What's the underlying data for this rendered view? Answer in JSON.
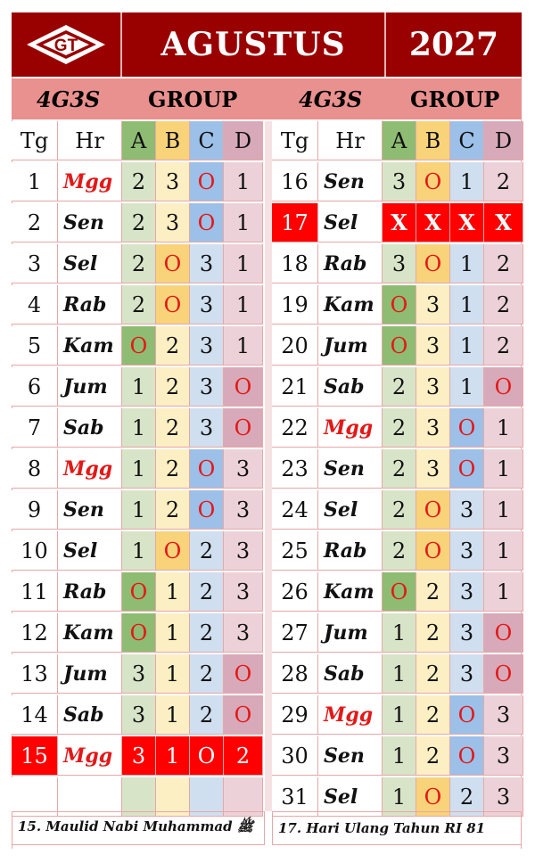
{
  "header": {
    "logo_text": "GT",
    "month": "AGUSTUS",
    "year": "2027"
  },
  "subheader": {
    "left": {
      "code": "4G3S",
      "group": "GROUP"
    },
    "right": {
      "code": "4G3S",
      "group": "GROUP"
    }
  },
  "columns": {
    "tg": "Tg",
    "hr": "Hr",
    "a": "A",
    "b": "B",
    "c": "C",
    "d": "D"
  },
  "left_rows": [
    {
      "tg": "1",
      "hr": "Mgg",
      "a": "2",
      "b": "3",
      "c": "O",
      "d": "1"
    },
    {
      "tg": "2",
      "hr": "Sen",
      "a": "2",
      "b": "3",
      "c": "O",
      "d": "1"
    },
    {
      "tg": "3",
      "hr": "Sel",
      "a": "2",
      "b": "O",
      "c": "3",
      "d": "1"
    },
    {
      "tg": "4",
      "hr": "Rab",
      "a": "2",
      "b": "O",
      "c": "3",
      "d": "1"
    },
    {
      "tg": "5",
      "hr": "Kam",
      "a": "O",
      "b": "2",
      "c": "3",
      "d": "1"
    },
    {
      "tg": "6",
      "hr": "Jum",
      "a": "1",
      "b": "2",
      "c": "3",
      "d": "O"
    },
    {
      "tg": "7",
      "hr": "Sab",
      "a": "1",
      "b": "2",
      "c": "3",
      "d": "O"
    },
    {
      "tg": "8",
      "hr": "Mgg",
      "a": "1",
      "b": "2",
      "c": "O",
      "d": "3"
    },
    {
      "tg": "9",
      "hr": "Sen",
      "a": "1",
      "b": "2",
      "c": "O",
      "d": "3"
    },
    {
      "tg": "10",
      "hr": "Sel",
      "a": "1",
      "b": "O",
      "c": "2",
      "d": "3"
    },
    {
      "tg": "11",
      "hr": "Rab",
      "a": "O",
      "b": "1",
      "c": "2",
      "d": "3"
    },
    {
      "tg": "12",
      "hr": "Kam",
      "a": "O",
      "b": "1",
      "c": "2",
      "d": "3"
    },
    {
      "tg": "13",
      "hr": "Jum",
      "a": "3",
      "b": "1",
      "c": "2",
      "d": "O"
    },
    {
      "tg": "14",
      "hr": "Sab",
      "a": "3",
      "b": "1",
      "c": "2",
      "d": "O"
    },
    {
      "tg": "15",
      "hr": "Mgg",
      "a": "3",
      "b": "1",
      "c": "O",
      "d": "2"
    },
    {
      "tg": "",
      "hr": "",
      "a": "",
      "b": "",
      "c": "",
      "d": ""
    }
  ],
  "right_rows": [
    {
      "tg": "16",
      "hr": "Sen",
      "a": "3",
      "b": "O",
      "c": "1",
      "d": "2"
    },
    {
      "tg": "17",
      "hr": "Sel",
      "a": "X",
      "b": "X",
      "c": "X",
      "d": "X"
    },
    {
      "tg": "18",
      "hr": "Rab",
      "a": "3",
      "b": "O",
      "c": "1",
      "d": "2"
    },
    {
      "tg": "19",
      "hr": "Kam",
      "a": "O",
      "b": "3",
      "c": "1",
      "d": "2"
    },
    {
      "tg": "20",
      "hr": "Jum",
      "a": "O",
      "b": "3",
      "c": "1",
      "d": "2"
    },
    {
      "tg": "21",
      "hr": "Sab",
      "a": "2",
      "b": "3",
      "c": "1",
      "d": "O"
    },
    {
      "tg": "22",
      "hr": "Mgg",
      "a": "2",
      "b": "3",
      "c": "O",
      "d": "1"
    },
    {
      "tg": "23",
      "hr": "Sen",
      "a": "2",
      "b": "3",
      "c": "O",
      "d": "1"
    },
    {
      "tg": "24",
      "hr": "Sel",
      "a": "2",
      "b": "O",
      "c": "3",
      "d": "1"
    },
    {
      "tg": "25",
      "hr": "Rab",
      "a": "2",
      "b": "O",
      "c": "3",
      "d": "1"
    },
    {
      "tg": "26",
      "hr": "Kam",
      "a": "O",
      "b": "2",
      "c": "3",
      "d": "1"
    },
    {
      "tg": "27",
      "hr": "Jum",
      "a": "1",
      "b": "2",
      "c": "3",
      "d": "O"
    },
    {
      "tg": "28",
      "hr": "Sab",
      "a": "1",
      "b": "2",
      "c": "3",
      "d": "O"
    },
    {
      "tg": "29",
      "hr": "Mgg",
      "a": "1",
      "b": "2",
      "c": "O",
      "d": "3"
    },
    {
      "tg": "30",
      "hr": "Sen",
      "a": "1",
      "b": "2",
      "c": "O",
      "d": "3"
    },
    {
      "tg": "31",
      "hr": "Sel",
      "a": "1",
      "b": "O",
      "c": "2",
      "d": "3"
    }
  ],
  "footer": {
    "left": "15. Maulid Nabi Muhammad ﷺ",
    "right": "17. Hari Ulang Tahun RI 81"
  },
  "colors": {
    "header_bg": "#990000",
    "subheader_bg": "#e8918f",
    "holiday_red": "#ff0000",
    "off_text": "#e31818",
    "col_a": "#8ebc72",
    "col_b": "#f8d37a",
    "col_c": "#9dc0e8",
    "col_d": "#d8a9b8"
  }
}
